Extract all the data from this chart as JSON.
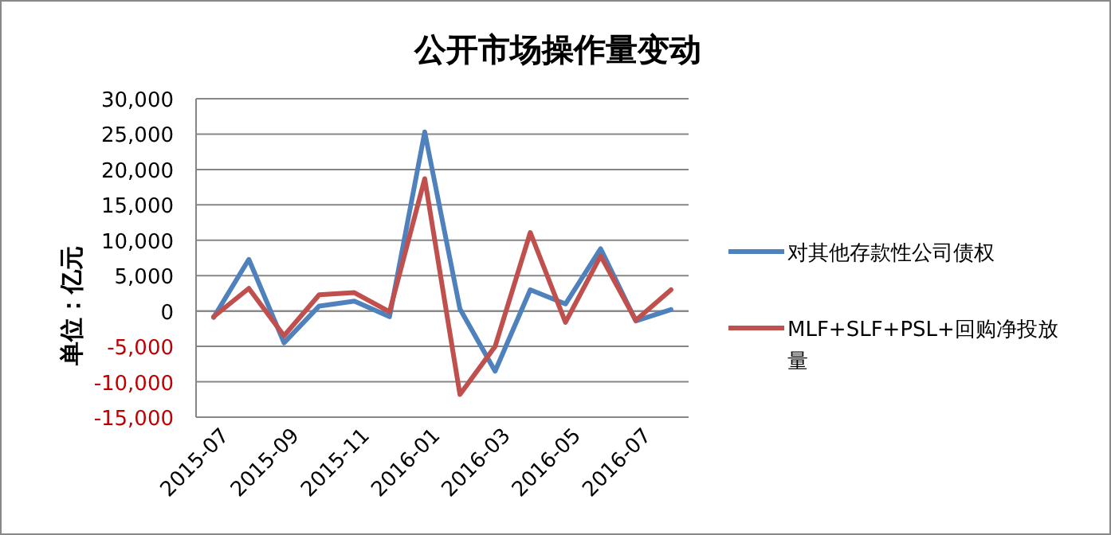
{
  "chart_data": {
    "type": "line",
    "title": "公开市场操作量变动",
    "ylabel": "单位：亿元",
    "categories": [
      "2015-07",
      null,
      "2015-09",
      null,
      "2015-11",
      null,
      "2016-01",
      null,
      "2016-03",
      null,
      "2016-05",
      null,
      "2016-07",
      null
    ],
    "series": [
      {
        "name": "对其他存款性公司债权",
        "color": "#4f81bd",
        "values": [
          -900,
          7300,
          -4500,
          700,
          1400,
          -800,
          25300,
          300,
          -8500,
          3000,
          1000,
          8800,
          -1400,
          200
        ]
      },
      {
        "name": "MLF+SLF+PSL+回购净投放量",
        "color": "#c0504d",
        "values": [
          -800,
          3200,
          -3500,
          2300,
          2600,
          -100,
          18700,
          -11800,
          -5000,
          11100,
          -1600,
          7800,
          -1300,
          3000
        ]
      }
    ],
    "ylim": [
      -15000,
      30000
    ],
    "yticks": [
      {
        "value": -15000,
        "label": "-15,000"
      },
      {
        "value": -10000,
        "label": "-10,000"
      },
      {
        "value": -5000,
        "label": "-5,000"
      },
      0,
      {
        "value": 5000,
        "label": "5,000"
      },
      {
        "value": 10000,
        "label": "10,000"
      },
      {
        "value": 15000,
        "label": "15,000"
      },
      {
        "value": 20000,
        "label": "20,000"
      },
      {
        "value": 25000,
        "label": "25,000"
      },
      {
        "value": 30000,
        "label": "30,000"
      }
    ],
    "grid": "y",
    "legend": "right",
    "marker": "none",
    "line_style": "solid"
  }
}
